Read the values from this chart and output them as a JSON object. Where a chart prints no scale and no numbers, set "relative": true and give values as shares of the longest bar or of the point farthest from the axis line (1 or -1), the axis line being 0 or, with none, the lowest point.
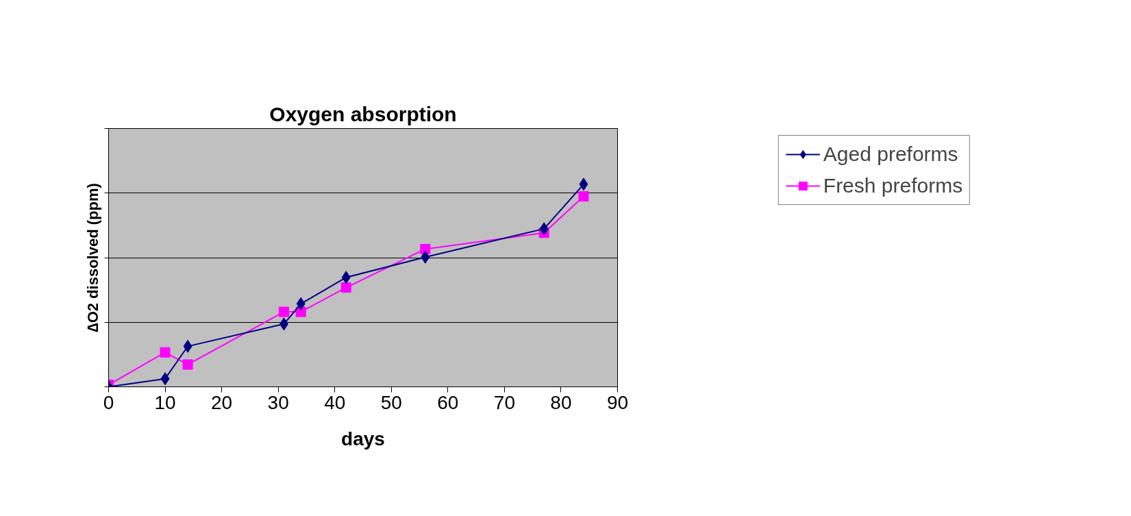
{
  "chart_data": {
    "type": "line",
    "title": "Oxygen absorption",
    "xlabel": "days",
    "ylabel": "∆O2 dissolved (ppm)",
    "relative": true,
    "xlim": [
      0,
      90
    ],
    "xticks": [
      0,
      10,
      20,
      30,
      40,
      50,
      60,
      70,
      80,
      90
    ],
    "grid": "y",
    "legend": "top right",
    "series": [
      {
        "name": "Aged preforms",
        "color": "#000080",
        "marker": "diamond",
        "x": [
          0,
          10,
          14,
          31,
          34,
          42,
          56,
          77,
          84
        ],
        "values": [
          0,
          0.04,
          0.2,
          0.31,
          0.41,
          0.54,
          0.64,
          0.78,
          1
        ]
      },
      {
        "name": "Fresh preforms",
        "color": "#ff00ff",
        "marker": "square",
        "x": [
          0,
          10,
          14,
          31,
          34,
          42,
          56,
          77,
          84
        ],
        "values": [
          0.01,
          0.17,
          0.11,
          0.37,
          0.37,
          0.49,
          0.68,
          0.76,
          0.94
        ]
      }
    ]
  }
}
